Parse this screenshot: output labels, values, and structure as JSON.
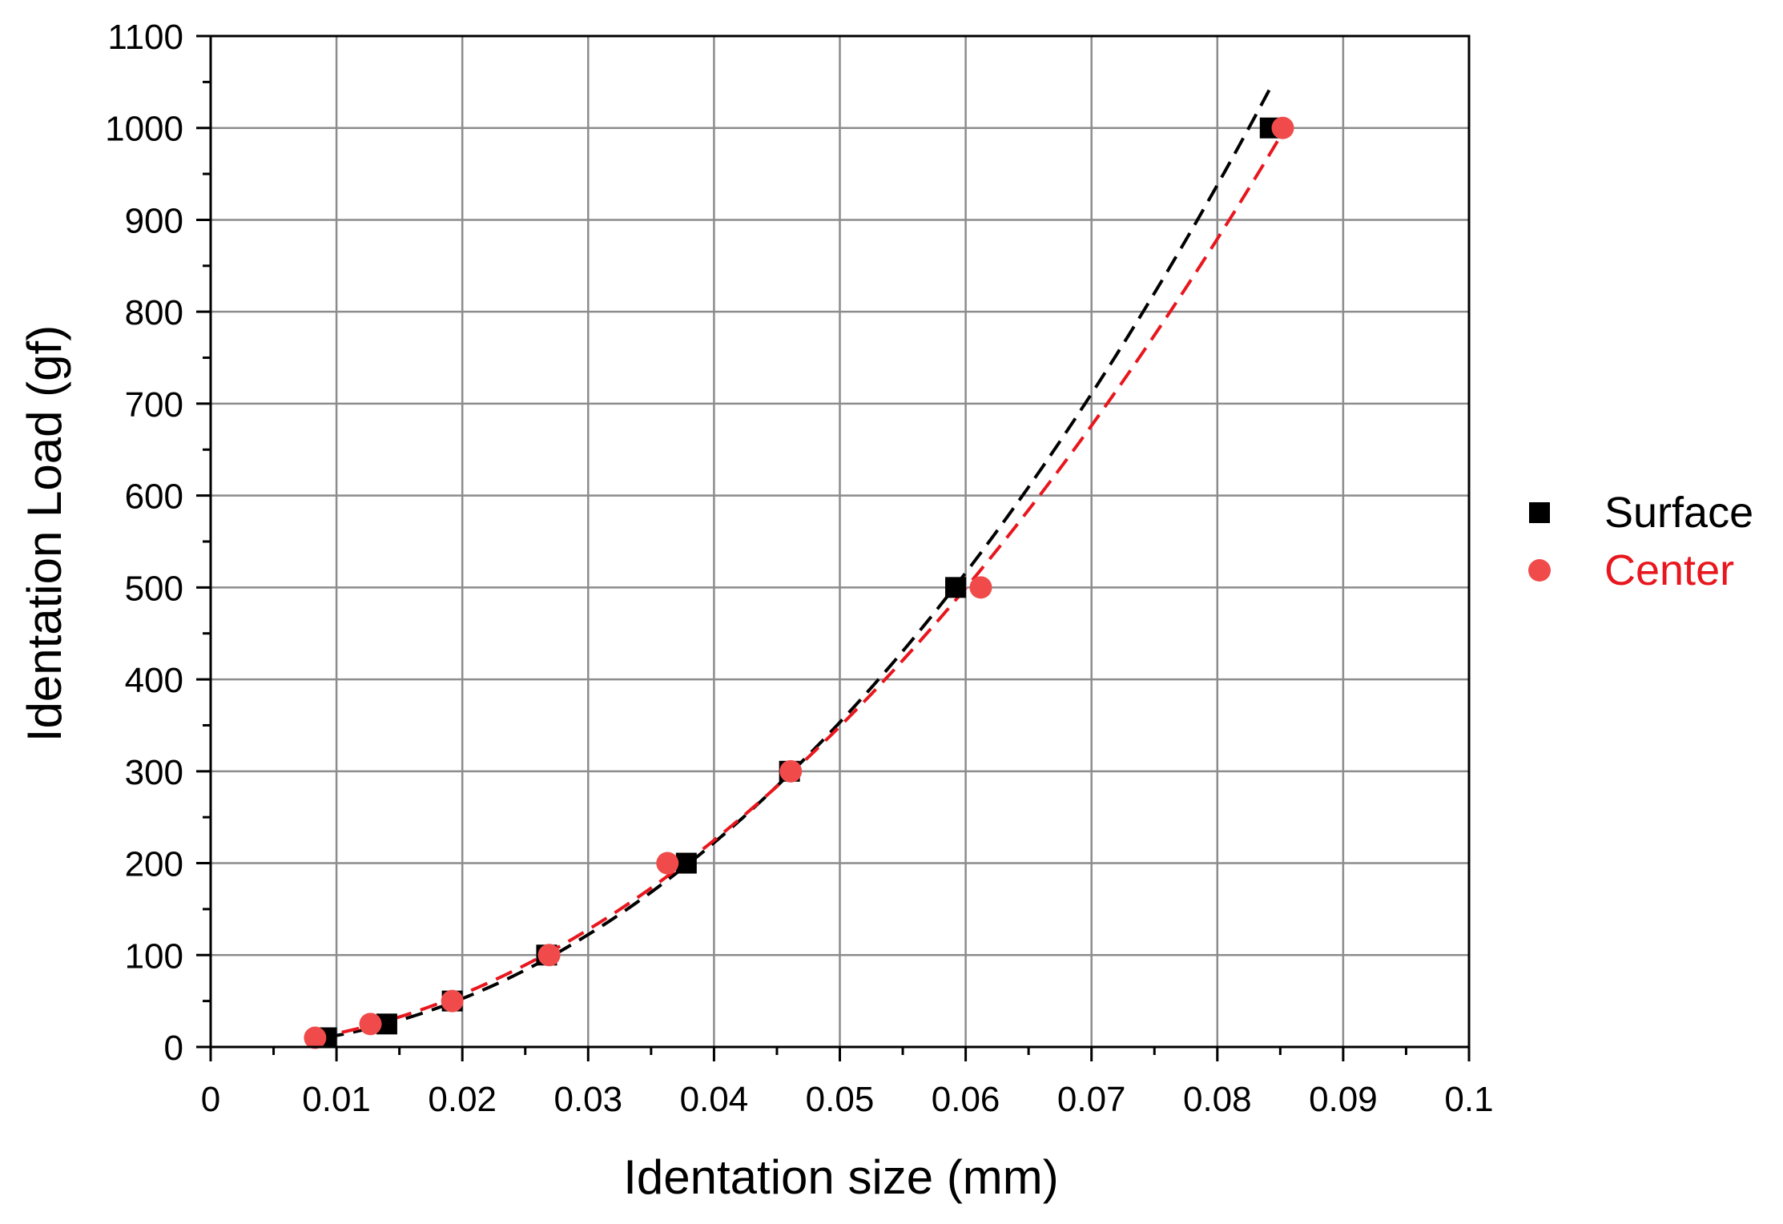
{
  "chart_data": {
    "type": "scatter",
    "xlabel": "Identation size (mm)",
    "ylabel": "Identation Load (gf)",
    "xlim": [
      0,
      0.1
    ],
    "ylim": [
      0,
      1100
    ],
    "x_ticks": [
      "0",
      "0.01",
      "0.02",
      "0.03",
      "0.04",
      "0.05",
      "0.06",
      "0.07",
      "0.08",
      "0.09",
      "0.1"
    ],
    "y_ticks": [
      "0",
      "100",
      "200",
      "300",
      "400",
      "500",
      "600",
      "700",
      "800",
      "900",
      "1000",
      "1100"
    ],
    "grid": true,
    "legend_position": "right",
    "series": [
      {
        "name": "Surface",
        "marker": "square",
        "color": "#000000",
        "fit_color": "#000000",
        "x": [
          0.0092,
          0.014,
          0.0192,
          0.0267,
          0.0378,
          0.046,
          0.0592,
          0.0842
        ],
        "y": [
          10,
          25,
          50,
          100,
          200,
          300,
          500,
          1000
        ],
        "fit": "dashed power-law curve"
      },
      {
        "name": "Center",
        "marker": "circle",
        "color": "#f04a4a",
        "fit_color": "#e8161d",
        "x": [
          0.0083,
          0.0127,
          0.0192,
          0.0269,
          0.0363,
          0.0461,
          0.0612,
          0.0852
        ],
        "y": [
          10,
          25,
          50,
          100,
          200,
          300,
          500,
          1000
        ],
        "fit": "dashed power-law curve"
      }
    ]
  }
}
